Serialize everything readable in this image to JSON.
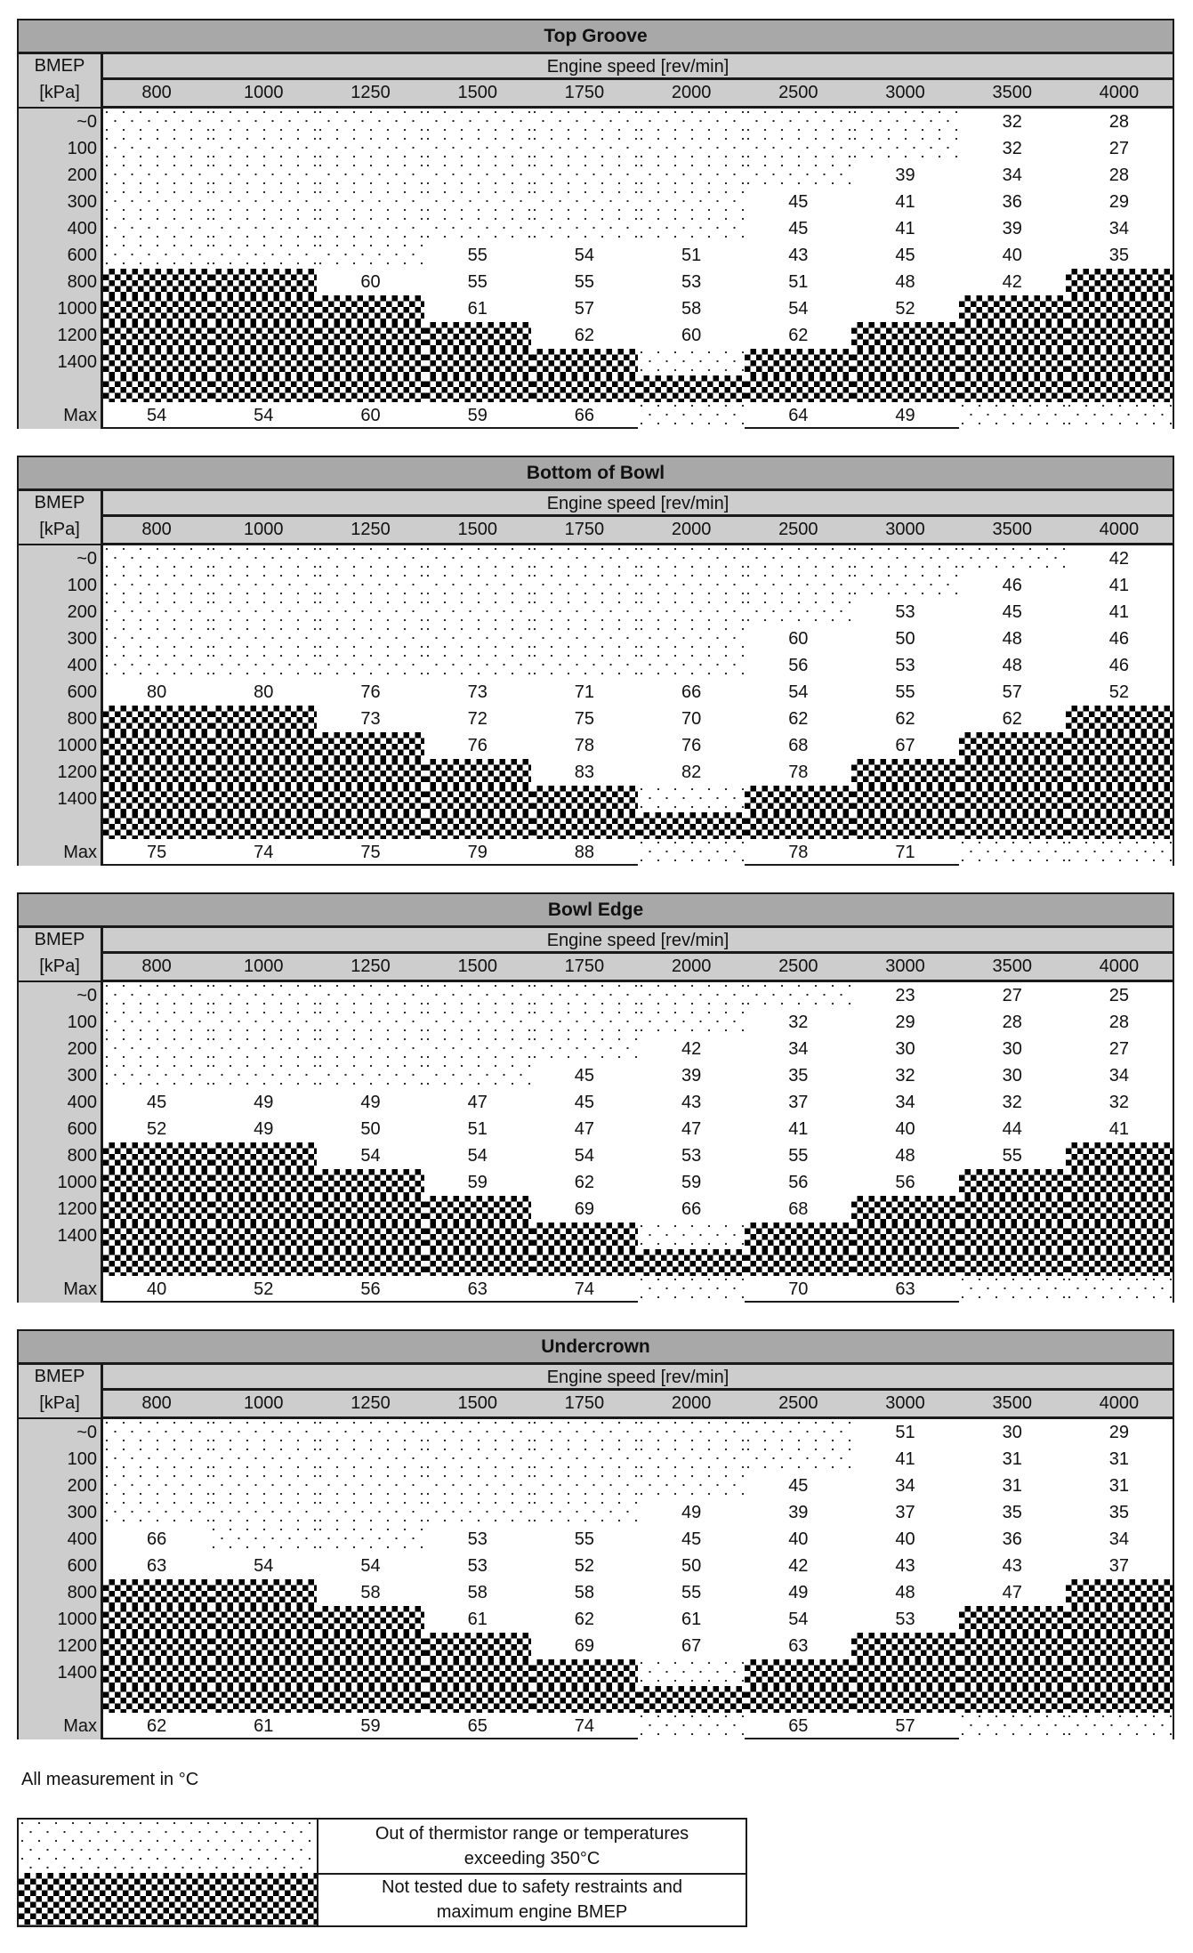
{
  "page": {
    "note": "All measurement in °C"
  },
  "common": {
    "bmep_header_line1": "BMEP",
    "bmep_header_line2": "[kPa]",
    "speed_title": "Engine speed [rev/min]",
    "speeds": [
      "800",
      "1000",
      "1250",
      "1500",
      "1750",
      "2000",
      "2500",
      "3000",
      "3500",
      "4000"
    ],
    "row_labels": [
      "~0",
      "100",
      "200",
      "300",
      "400",
      "600",
      "800",
      "1000",
      "1200",
      "1400",
      "",
      "Max"
    ]
  },
  "pattern_codes": {
    "D": "Out of thermistor range or temperatures exceeding 350°C (dotted)",
    "C": "Not tested due to safety restraints and maximum engine BMEP (checkered)"
  },
  "tables": [
    {
      "title": "Top Groove",
      "rows": [
        [
          "D",
          "D",
          "D",
          "D",
          "D",
          "D",
          "D",
          "D",
          "32",
          "28"
        ],
        [
          "D",
          "D",
          "D",
          "D",
          "D",
          "D",
          "D",
          "D",
          "32",
          "27"
        ],
        [
          "D",
          "D",
          "D",
          "D",
          "D",
          "D",
          "D",
          "39",
          "34",
          "28"
        ],
        [
          "D",
          "D",
          "D",
          "D",
          "D",
          "D",
          "45",
          "41",
          "36",
          "29"
        ],
        [
          "D",
          "D",
          "D",
          "D",
          "D",
          "D",
          "45",
          "41",
          "39",
          "34"
        ],
        [
          "D",
          "D",
          "D",
          "55",
          "54",
          "51",
          "43",
          "45",
          "40",
          "35"
        ],
        [
          "C",
          "C",
          "60",
          "55",
          "55",
          "53",
          "51",
          "48",
          "42",
          "C"
        ],
        [
          "C",
          "C",
          "C",
          "61",
          "57",
          "58",
          "54",
          "52",
          "C",
          "C"
        ],
        [
          "C",
          "C",
          "C",
          "C",
          "62",
          "60",
          "62",
          "C",
          "C",
          "C"
        ],
        [
          "C",
          "C",
          "C",
          "C",
          "C",
          "D",
          "C",
          "C",
          "C",
          "C"
        ],
        [
          "C",
          "C",
          "C",
          "C",
          "C",
          "C",
          "C",
          "C",
          "C",
          "C"
        ],
        [
          "54",
          "54",
          "60",
          "59",
          "66",
          "D",
          "64",
          "49",
          "D",
          "D"
        ]
      ]
    },
    {
      "title": "Bottom of Bowl",
      "rows": [
        [
          "D",
          "D",
          "D",
          "D",
          "D",
          "D",
          "D",
          "D",
          "D",
          "42"
        ],
        [
          "D",
          "D",
          "D",
          "D",
          "D",
          "D",
          "D",
          "D",
          "46",
          "41"
        ],
        [
          "D",
          "D",
          "D",
          "D",
          "D",
          "D",
          "D",
          "53",
          "45",
          "41"
        ],
        [
          "D",
          "D",
          "D",
          "D",
          "D",
          "D",
          "60",
          "50",
          "48",
          "46"
        ],
        [
          "D",
          "D",
          "D",
          "D",
          "D",
          "D",
          "56",
          "53",
          "48",
          "46"
        ],
        [
          "80",
          "80",
          "76",
          "73",
          "71",
          "66",
          "54",
          "55",
          "57",
          "52"
        ],
        [
          "C",
          "C",
          "73",
          "72",
          "75",
          "70",
          "62",
          "62",
          "62",
          "C"
        ],
        [
          "C",
          "C",
          "C",
          "76",
          "78",
          "76",
          "68",
          "67",
          "C",
          "C"
        ],
        [
          "C",
          "C",
          "C",
          "C",
          "83",
          "82",
          "78",
          "C",
          "C",
          "C"
        ],
        [
          "C",
          "C",
          "C",
          "C",
          "C",
          "D",
          "C",
          "C",
          "C",
          "C"
        ],
        [
          "C",
          "C",
          "C",
          "C",
          "C",
          "C",
          "C",
          "C",
          "C",
          "C"
        ],
        [
          "75",
          "74",
          "75",
          "79",
          "88",
          "D",
          "78",
          "71",
          "D",
          "D"
        ]
      ]
    },
    {
      "title": "Bowl Edge",
      "rows": [
        [
          "D",
          "D",
          "D",
          "D",
          "D",
          "D",
          "D",
          "23",
          "27",
          "25"
        ],
        [
          "D",
          "D",
          "D",
          "D",
          "D",
          "D",
          "32",
          "29",
          "28",
          "28"
        ],
        [
          "D",
          "D",
          "D",
          "D",
          "D",
          "42",
          "34",
          "30",
          "30",
          "27"
        ],
        [
          "D",
          "D",
          "D",
          "D",
          "45",
          "39",
          "35",
          "32",
          "30",
          "34"
        ],
        [
          "45",
          "49",
          "49",
          "47",
          "45",
          "43",
          "37",
          "34",
          "32",
          "32"
        ],
        [
          "52",
          "49",
          "50",
          "51",
          "47",
          "47",
          "41",
          "40",
          "44",
          "41"
        ],
        [
          "C",
          "C",
          "54",
          "54",
          "54",
          "53",
          "55",
          "48",
          "55",
          "C"
        ],
        [
          "C",
          "C",
          "C",
          "59",
          "62",
          "59",
          "56",
          "56",
          "C",
          "C"
        ],
        [
          "C",
          "C",
          "C",
          "C",
          "69",
          "66",
          "68",
          "C",
          "C",
          "C"
        ],
        [
          "C",
          "C",
          "C",
          "C",
          "C",
          "D",
          "C",
          "C",
          "C",
          "C"
        ],
        [
          "C",
          "C",
          "C",
          "C",
          "C",
          "C",
          "C",
          "C",
          "C",
          "C"
        ],
        [
          "40",
          "52",
          "56",
          "63",
          "74",
          "D",
          "70",
          "63",
          "D",
          "D"
        ]
      ]
    },
    {
      "title": "Undercrown",
      "rows": [
        [
          "D",
          "D",
          "D",
          "D",
          "D",
          "D",
          "D",
          "51",
          "30",
          "29"
        ],
        [
          "D",
          "D",
          "D",
          "D",
          "D",
          "D",
          "D",
          "41",
          "31",
          "31"
        ],
        [
          "D",
          "D",
          "D",
          "D",
          "D",
          "D",
          "45",
          "34",
          "31",
          "31"
        ],
        [
          "D",
          "D",
          "D",
          "D",
          "D",
          "49",
          "39",
          "37",
          "35",
          "35"
        ],
        [
          "66",
          "D",
          "D",
          "53",
          "55",
          "45",
          "40",
          "40",
          "36",
          "34"
        ],
        [
          "63",
          "54",
          "54",
          "53",
          "52",
          "50",
          "42",
          "43",
          "43",
          "37"
        ],
        [
          "C",
          "C",
          "58",
          "58",
          "58",
          "55",
          "49",
          "48",
          "47",
          "C"
        ],
        [
          "C",
          "C",
          "C",
          "61",
          "62",
          "61",
          "54",
          "53",
          "C",
          "C"
        ],
        [
          "C",
          "C",
          "C",
          "C",
          "69",
          "67",
          "63",
          "C",
          "C",
          "C"
        ],
        [
          "C",
          "C",
          "C",
          "C",
          "C",
          "D",
          "C",
          "C",
          "C",
          "C"
        ],
        [
          "C",
          "C",
          "C",
          "C",
          "C",
          "C",
          "C",
          "C",
          "C",
          "C"
        ],
        [
          "62",
          "61",
          "59",
          "65",
          "74",
          "D",
          "65",
          "57",
          "D",
          "D"
        ]
      ]
    }
  ],
  "legend": {
    "items": [
      {
        "pattern": "dots",
        "text": "Out of thermistor range or temperatures\nexceeding 350°C"
      },
      {
        "pattern": "checker",
        "text": "Not tested due to safety restraints and\nmaximum engine BMEP"
      }
    ]
  }
}
